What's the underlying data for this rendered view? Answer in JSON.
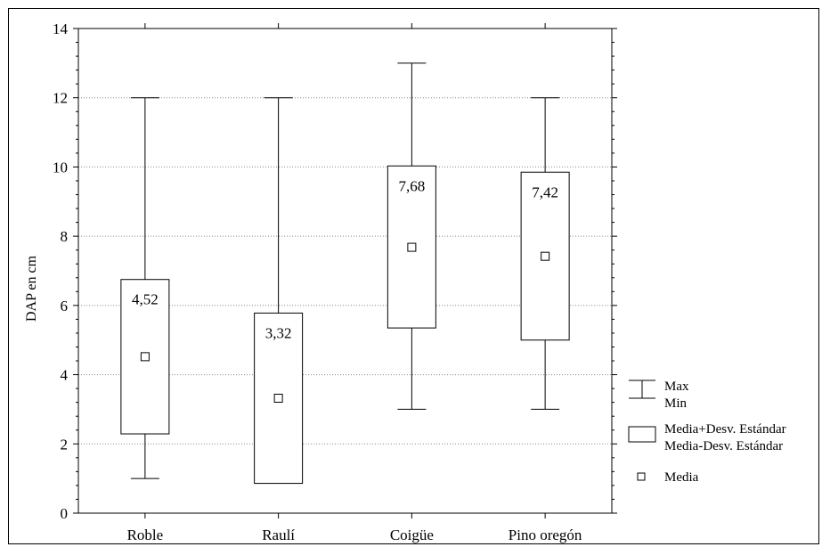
{
  "chart_data": {
    "type": "box",
    "ylabel": "DAP en cm",
    "ylim": [
      0,
      14
    ],
    "yticks": [
      "0",
      "2",
      "4",
      "6",
      "8",
      "10",
      "12",
      "14"
    ],
    "grid": true,
    "categories": [
      "Roble",
      "Raulí",
      "Coigüe",
      "Pino oregón"
    ],
    "series": [
      {
        "category": "Roble",
        "min": 1,
        "max": 12,
        "mean": 4.52,
        "mean_label": "4,52",
        "mean_plus_sd": 6.75,
        "mean_minus_sd": 2.29
      },
      {
        "category": "Raulí",
        "min": 0.86,
        "max": 12,
        "mean": 3.32,
        "mean_label": "3,32",
        "mean_plus_sd": 5.78,
        "mean_minus_sd": 0.86
      },
      {
        "category": "Coigüe",
        "min": 3,
        "max": 13,
        "mean": 7.68,
        "mean_label": "7,68",
        "mean_plus_sd": 10.03,
        "mean_minus_sd": 5.35
      },
      {
        "category": "Pino oregón",
        "min": 3,
        "max": 12,
        "mean": 7.42,
        "mean_label": "7,42",
        "mean_plus_sd": 9.85,
        "mean_minus_sd": 5.0
      }
    ],
    "legend": {
      "position": "right",
      "whisker_labels": [
        "Max",
        "Min"
      ],
      "box_labels": [
        "Media+Desv. Estándar",
        "Media-Desv. Estándar"
      ],
      "mean_label": "Media"
    }
  }
}
